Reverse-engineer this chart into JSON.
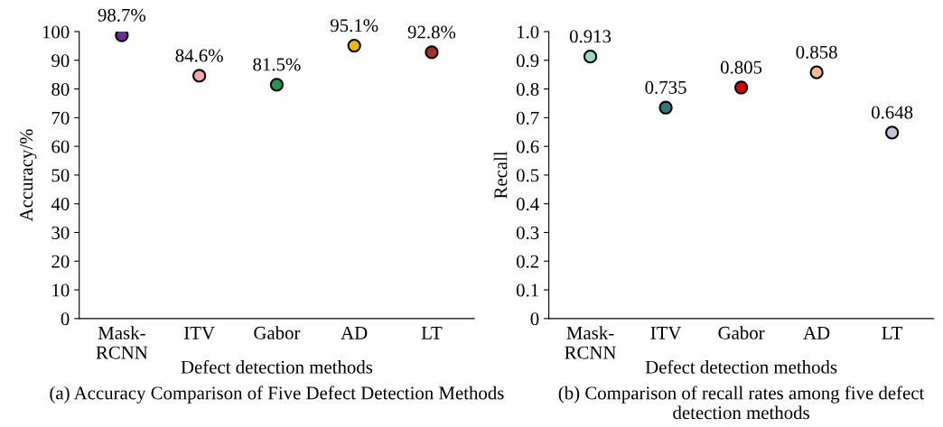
{
  "chart_data": [
    {
      "type": "scatter",
      "title": "(a) Accuracy Comparison of Five Defect Detection Methods",
      "xlabel": "Defect detection methods",
      "ylabel": "Accuracy/%",
      "categories": [
        "Mask-\nRCNN",
        "ITV",
        "Gabor",
        "AD",
        "LT"
      ],
      "series": [
        {
          "values": [
            98.7,
            84.6,
            81.5,
            95.1,
            92.8
          ],
          "colors": [
            "#6a2c91",
            "#f4a6a6",
            "#1a9a50",
            "#f5b800",
            "#a0302a"
          ],
          "value_labels": [
            "98.7%",
            "84.6%",
            "81.5%",
            "95.1%",
            "92.8%"
          ]
        }
      ],
      "ylim": [
        0,
        100
      ],
      "yticks": [
        0,
        10,
        20,
        30,
        40,
        50,
        60,
        70,
        80,
        90,
        100
      ],
      "marker": "circle",
      "grid": false
    },
    {
      "type": "scatter",
      "title": "(b) Comparison of recall rates among five defect detection methods",
      "xlabel": "Defect detection methods",
      "ylabel": "Recall",
      "categories": [
        "Mask-\nRCNN",
        "ITV",
        "Gabor",
        "AD",
        "LT"
      ],
      "series": [
        {
          "values": [
            0.913,
            0.735,
            0.805,
            0.858,
            0.648
          ],
          "colors": [
            "#8fe0c0",
            "#2a7a8a",
            "#e00000",
            "#f6b98a",
            "#c8c0d8"
          ],
          "value_labels": [
            "0.913",
            "0.735",
            "0.805",
            "0.858",
            "0.648"
          ]
        }
      ],
      "ylim": [
        0,
        1.0
      ],
      "yticks": [
        0,
        {
          "value": 0.1,
          "label": "0.1"
        },
        {
          "value": 0.2,
          "label": "0.2"
        },
        {
          "value": 0.3,
          "label": "0.3"
        },
        {
          "value": 0.4,
          "label": "0.4"
        },
        {
          "value": 0.5,
          "label": "0.5"
        },
        {
          "value": 0.6,
          "label": "0.6"
        },
        {
          "value": 0.7,
          "label": "0.7"
        },
        {
          "value": 0.8,
          "label": "0.8"
        },
        {
          "value": 0.9,
          "label": "0.9"
        },
        {
          "value": 1.0,
          "label": "1.0"
        }
      ],
      "marker": "circle",
      "grid": false
    }
  ]
}
